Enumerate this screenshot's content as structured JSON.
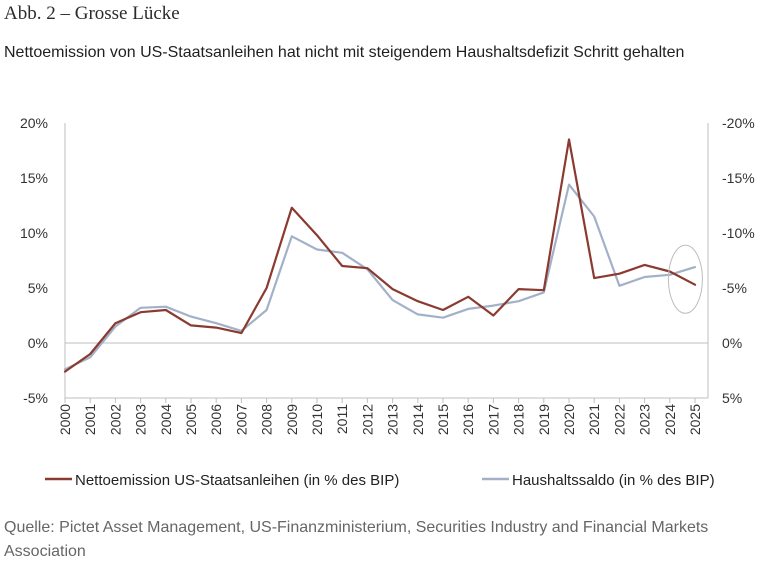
{
  "figure": {
    "label": "Abb. 2 – Grosse Lücke",
    "subtitle": "Nettoemission von US-Staatsanleihen hat nicht mit steigendem Haushaltsdefizit Schritt gehalten",
    "source": "Quelle: Pictet Asset Management, US-Finanzministerium, Securities Industry and Financial Markets Association"
  },
  "colors": {
    "series1": "#8b3a2f",
    "series2": "#a3b1c8",
    "axis": "#bfbfbf",
    "ellipse": "#bdbdbd"
  },
  "chart_data": {
    "type": "line",
    "title": "Nettoemission von US-Staatsanleihen hat nicht mit steigendem Haushaltsdefizit Schritt gehalten",
    "x": [
      "2000",
      "2001",
      "2002",
      "2003",
      "2004",
      "2005",
      "2006",
      "2007",
      "2008",
      "2009",
      "2010",
      "2011",
      "2012",
      "2013",
      "2014",
      "2015",
      "2016",
      "2017",
      "2018",
      "2019",
      "2020",
      "2021",
      "2022",
      "2023",
      "2024",
      "2025"
    ],
    "y_left": {
      "ylim": [
        -5,
        20
      ],
      "ticks": [
        "20%",
        "15%",
        "10%",
        "5%",
        "0%",
        "-5%"
      ],
      "tick_values": [
        20,
        15,
        10,
        5,
        0,
        -5
      ]
    },
    "y_right": {
      "ylim": [
        5,
        -20
      ],
      "inverted": true,
      "ticks": [
        "-20%",
        "-15%",
        "-10%",
        "-5%",
        "0%",
        "5%"
      ],
      "tick_values": [
        -20,
        -15,
        -10,
        -5,
        0,
        5
      ]
    },
    "series": [
      {
        "name": "Nettoemission US-Staatsanleihen (in % des BIP)",
        "axis": "left",
        "values": [
          -2.6,
          -1.0,
          1.8,
          2.8,
          3.0,
          1.6,
          1.4,
          0.9,
          5.0,
          12.3,
          9.8,
          7.0,
          6.8,
          4.9,
          3.8,
          3.0,
          4.2,
          2.5,
          4.9,
          4.8,
          18.5,
          5.9,
          6.3,
          7.1,
          6.5,
          5.3
        ]
      },
      {
        "name": "Haushaltssaldo (in % des BIP)",
        "axis": "right",
        "values": [
          2.4,
          1.3,
          -1.5,
          -3.2,
          -3.3,
          -2.4,
          -1.8,
          -1.1,
          -3.0,
          -9.7,
          -8.5,
          -8.2,
          -6.7,
          -3.9,
          -2.6,
          -2.3,
          -3.1,
          -3.4,
          -3.8,
          -4.6,
          -14.4,
          -11.5,
          -5.2,
          -6.0,
          -6.2,
          -6.9
        ]
      }
    ],
    "annotations": [
      {
        "type": "ellipse",
        "around_years": [
          "2024",
          "2025"
        ]
      }
    ],
    "legend": {
      "placement": "bottom"
    }
  }
}
